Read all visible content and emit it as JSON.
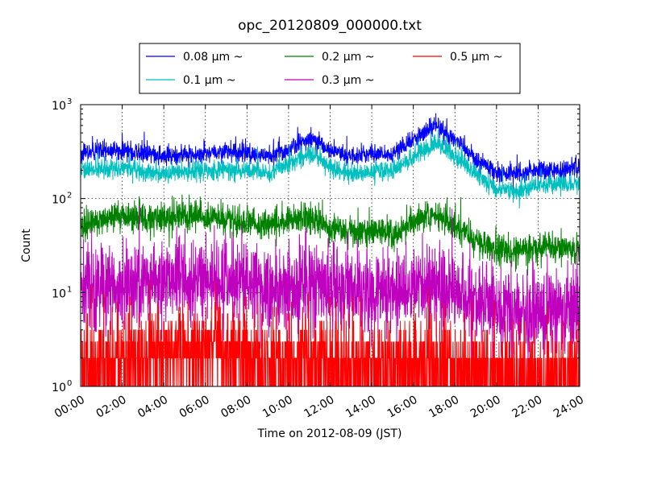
{
  "chart_data": {
    "type": "line",
    "title": "opc_20120809_000000.txt",
    "xlabel": "Time on 2012-08-09 (JST)",
    "ylabel": "Count",
    "yscale": "log",
    "ylim": [
      1,
      1000
    ],
    "xlim": [
      "00:00",
      "24:00"
    ],
    "grid": true,
    "legend_position": "top-center, above plot, 3 columns",
    "x_ticks": [
      "00:00",
      "02:00",
      "04:00",
      "06:00",
      "08:00",
      "10:00",
      "12:00",
      "14:00",
      "16:00",
      "18:00",
      "20:00",
      "22:00",
      "24:00"
    ],
    "y_ticks": [
      {
        "base": "10",
        "exp": "0"
      },
      {
        "base": "10",
        "exp": "1"
      },
      {
        "base": "10",
        "exp": "2"
      },
      {
        "base": "10",
        "exp": "3"
      }
    ],
    "hours": [
      0,
      1,
      2,
      3,
      4,
      5,
      6,
      7,
      8,
      9,
      10,
      11,
      12,
      13,
      14,
      15,
      16,
      17,
      18,
      19,
      20,
      21,
      22,
      23,
      24
    ],
    "series": [
      {
        "name": "0.08 μm ~",
        "color": "#0000ff",
        "median": [
          300,
          310,
          330,
          300,
          280,
          290,
          300,
          320,
          310,
          280,
          330,
          450,
          330,
          280,
          300,
          300,
          420,
          600,
          420,
          260,
          190,
          180,
          205,
          200,
          220
        ],
        "noise": 0.05,
        "spiky": false
      },
      {
        "name": "0.1 μm ~",
        "color": "#00bfbf",
        "median": [
          200,
          205,
          215,
          195,
          185,
          195,
          195,
          200,
          205,
          185,
          230,
          300,
          220,
          180,
          190,
          200,
          270,
          380,
          280,
          180,
          125,
          120,
          135,
          140,
          150
        ],
        "noise": 0.05,
        "spiky": false
      },
      {
        "name": "0.2 μm ~",
        "color": "#008000",
        "median": [
          52,
          58,
          62,
          62,
          62,
          65,
          63,
          60,
          55,
          52,
          58,
          62,
          48,
          45,
          45,
          40,
          55,
          68,
          50,
          35,
          28,
          27,
          30,
          30,
          28
        ],
        "noise": 0.08,
        "spiky": false
      },
      {
        "name": "0.3 μm ~",
        "color": "#bf00bf",
        "median": [
          10,
          11,
          12,
          13,
          14,
          14,
          14,
          14,
          13,
          12,
          12,
          12,
          11,
          10,
          10,
          10,
          11,
          12,
          10,
          8,
          7,
          6.5,
          6,
          6,
          6
        ],
        "noise": 0.22,
        "spiky": true
      },
      {
        "name": "0.5 μm ~",
        "color": "#ff0000",
        "median": [
          1.6,
          1.8,
          2,
          2.2,
          2.3,
          2.4,
          2.4,
          2.2,
          2,
          1.8,
          1.8,
          1.8,
          1.7,
          1.6,
          1.6,
          1.6,
          1.7,
          1.8,
          1.6,
          1.5,
          1.4,
          1.3,
          1.3,
          1.3,
          1.3
        ],
        "noise": 0.25,
        "spiky": true
      }
    ]
  }
}
